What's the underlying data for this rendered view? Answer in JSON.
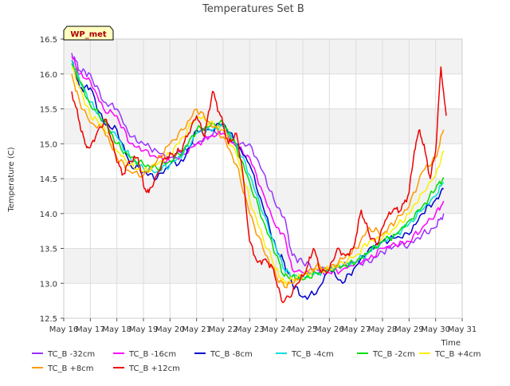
{
  "chart_data": {
    "type": "line",
    "title": "Temperatures Set B",
    "xlabel": "Time",
    "ylabel": "Temperature (C)",
    "xlim": [
      16,
      31
    ],
    "ylim": [
      12.5,
      16.5
    ],
    "x_ticks": [
      16,
      17,
      18,
      19,
      20,
      21,
      22,
      23,
      24,
      25,
      26,
      27,
      28,
      29,
      30,
      31
    ],
    "x_tick_labels": [
      "May 16",
      "May 17",
      "May 18",
      "May 19",
      "May 20",
      "May 21",
      "May 22",
      "May 23",
      "May 24",
      "May 25",
      "May 26",
      "May 27",
      "May 28",
      "May 29",
      "May 30",
      "May 31"
    ],
    "y_ticks": [
      12.5,
      13.0,
      13.5,
      14.0,
      14.5,
      15.0,
      15.5,
      16.0,
      16.5
    ],
    "y_tick_labels": [
      "12.5",
      "13.0",
      "13.5",
      "14.0",
      "14.5",
      "15.0",
      "15.5",
      "16.0",
      "16.5"
    ],
    "grid": true,
    "legend_position": "bottom",
    "annotation": "WP_met",
    "series": [
      {
        "name": "TC_B -32cm",
        "color": "#9933ff",
        "x": [
          16.3,
          16.6,
          17.0,
          17.5,
          18.0,
          18.5,
          19.0,
          19.5,
          20.0,
          20.5,
          21.0,
          21.5,
          22.0,
          22.5,
          23.0,
          23.5,
          24.0,
          24.3,
          24.6,
          25.0,
          25.5,
          26.0,
          26.5,
          27.0,
          27.5,
          28.0,
          28.5,
          29.0,
          29.5,
          30.0,
          30.3
        ],
        "y": [
          16.3,
          16.05,
          16.0,
          15.6,
          15.5,
          15.1,
          15.0,
          14.9,
          14.8,
          14.9,
          15.0,
          15.1,
          15.2,
          15.0,
          15.0,
          14.6,
          14.1,
          13.95,
          13.4,
          13.3,
          13.2,
          13.2,
          13.25,
          13.3,
          13.3,
          13.45,
          13.55,
          13.55,
          13.7,
          13.8,
          14.0
        ]
      },
      {
        "name": "TC_B -16cm",
        "color": "#ff00ff",
        "x": [
          16.3,
          16.6,
          17.0,
          17.5,
          18.0,
          18.5,
          19.0,
          19.5,
          20.0,
          20.5,
          21.0,
          21.5,
          22.0,
          22.5,
          23.0,
          23.5,
          24.0,
          24.3,
          24.6,
          25.0,
          25.5,
          26.0,
          26.5,
          27.0,
          27.5,
          28.0,
          28.5,
          29.0,
          29.5,
          30.0,
          30.3
        ],
        "y": [
          16.25,
          16.0,
          15.9,
          15.5,
          15.4,
          15.0,
          14.9,
          14.8,
          14.75,
          14.85,
          15.0,
          15.1,
          15.15,
          14.95,
          14.8,
          14.3,
          13.8,
          13.7,
          13.2,
          13.15,
          13.15,
          13.15,
          13.2,
          13.3,
          13.35,
          13.5,
          13.55,
          13.6,
          13.8,
          14.0,
          14.18
        ]
      },
      {
        "name": "TC_B -8cm",
        "color": "#0000cc",
        "x": [
          16.3,
          16.6,
          17.0,
          17.5,
          18.0,
          18.5,
          19.0,
          19.5,
          20.0,
          20.5,
          21.0,
          21.5,
          22.0,
          22.5,
          23.0,
          23.5,
          24.0,
          24.3,
          24.6,
          25.0,
          25.5,
          26.0,
          26.5,
          27.0,
          27.5,
          28.0,
          28.5,
          29.0,
          29.5,
          30.0,
          30.3
        ],
        "y": [
          16.2,
          15.8,
          15.8,
          15.3,
          15.2,
          14.7,
          14.6,
          14.5,
          14.7,
          14.75,
          15.2,
          15.2,
          15.3,
          15.0,
          14.7,
          14.1,
          13.5,
          13.3,
          13.0,
          12.8,
          12.85,
          13.2,
          13.0,
          13.25,
          13.5,
          13.6,
          13.65,
          13.7,
          14.0,
          14.2,
          14.35
        ]
      },
      {
        "name": "TC_B -4cm",
        "color": "#00dddd",
        "x": [
          16.3,
          16.6,
          17.0,
          17.5,
          18.0,
          18.5,
          19.0,
          19.5,
          20.0,
          20.5,
          21.0,
          21.5,
          22.0,
          22.5,
          23.0,
          23.5,
          24.0,
          24.3,
          24.6,
          25.0,
          25.5,
          26.0,
          26.5,
          27.0,
          27.5,
          28.0,
          28.5,
          29.0,
          29.5,
          30.0,
          30.3
        ],
        "y": [
          16.2,
          15.9,
          15.6,
          15.3,
          15.1,
          14.8,
          14.65,
          14.6,
          14.7,
          14.85,
          15.15,
          15.2,
          15.25,
          15.0,
          14.55,
          14.0,
          13.5,
          13.2,
          13.1,
          13.1,
          13.15,
          13.2,
          13.25,
          13.3,
          13.45,
          13.6,
          13.7,
          13.85,
          14.05,
          14.25,
          14.45
        ]
      },
      {
        "name": "TC_B -2cm",
        "color": "#00dd00",
        "x": [
          16.3,
          16.6,
          17.0,
          17.5,
          18.0,
          18.5,
          19.0,
          19.5,
          20.0,
          20.5,
          21.0,
          21.5,
          22.0,
          22.5,
          23.0,
          23.5,
          24.0,
          24.3,
          24.6,
          25.0,
          25.5,
          26.0,
          26.5,
          27.0,
          27.5,
          28.0,
          28.5,
          29.0,
          29.5,
          30.0,
          30.3
        ],
        "y": [
          16.15,
          15.9,
          15.55,
          15.35,
          15.0,
          14.8,
          14.7,
          14.65,
          14.75,
          14.9,
          15.2,
          15.25,
          15.3,
          14.95,
          14.45,
          13.9,
          13.4,
          13.1,
          13.1,
          13.05,
          13.15,
          13.2,
          13.25,
          13.3,
          13.45,
          13.6,
          13.7,
          13.9,
          14.1,
          14.35,
          14.52
        ]
      },
      {
        "name": "TC_B +4cm",
        "color": "#ffee00",
        "x": [
          16.3,
          16.6,
          17.0,
          17.5,
          18.0,
          18.5,
          19.0,
          19.5,
          20.0,
          20.5,
          21.0,
          21.5,
          22.0,
          22.5,
          23.0,
          23.5,
          24.0,
          24.3,
          24.6,
          25.0,
          25.5,
          26.0,
          26.5,
          27.0,
          27.5,
          28.0,
          28.5,
          29.0,
          29.5,
          30.0,
          30.3
        ],
        "y": [
          16.1,
          15.8,
          15.4,
          15.25,
          14.9,
          14.7,
          14.6,
          14.7,
          14.85,
          15.1,
          15.4,
          15.3,
          15.2,
          14.85,
          14.2,
          13.65,
          13.2,
          13.0,
          13.05,
          13.1,
          13.2,
          13.2,
          13.3,
          13.4,
          13.6,
          13.65,
          13.8,
          14.0,
          14.3,
          14.55,
          14.9
        ]
      },
      {
        "name": "TC_B +8cm",
        "color": "#ff9900",
        "x": [
          16.3,
          16.6,
          17.0,
          17.5,
          18.0,
          18.5,
          19.0,
          19.5,
          20.0,
          20.5,
          21.0,
          21.5,
          22.0,
          22.5,
          23.0,
          23.5,
          24.0,
          24.3,
          24.6,
          25.0,
          25.5,
          26.0,
          26.5,
          27.0,
          27.5,
          28.0,
          28.5,
          29.0,
          29.5,
          30.0,
          30.3
        ],
        "y": [
          16.0,
          15.6,
          15.3,
          15.2,
          14.8,
          14.6,
          14.55,
          14.75,
          15.0,
          15.2,
          15.5,
          15.3,
          15.1,
          14.7,
          14.0,
          13.5,
          13.1,
          12.95,
          13.0,
          13.1,
          13.25,
          13.2,
          13.35,
          13.5,
          13.8,
          13.7,
          13.9,
          14.1,
          14.6,
          14.8,
          15.2
        ]
      },
      {
        "name": "TC_B +12cm",
        "color": "#ee0000",
        "x": [
          16.3,
          16.6,
          16.8,
          17.0,
          17.3,
          17.6,
          17.9,
          18.2,
          18.5,
          18.8,
          19.0,
          19.2,
          19.5,
          19.8,
          20.1,
          20.4,
          20.7,
          21.0,
          21.3,
          21.6,
          21.9,
          22.2,
          22.5,
          22.7,
          23.0,
          23.3,
          23.6,
          23.9,
          24.2,
          24.5,
          24.8,
          25.1,
          25.4,
          25.7,
          26.0,
          26.3,
          26.6,
          26.9,
          27.2,
          27.5,
          27.8,
          28.1,
          28.4,
          28.7,
          29.0,
          29.2,
          29.4,
          29.6,
          29.8,
          30.0,
          30.2,
          30.4
        ],
        "y": [
          15.75,
          15.3,
          15.0,
          14.95,
          15.2,
          15.35,
          14.9,
          14.55,
          14.75,
          14.8,
          14.4,
          14.3,
          14.55,
          14.8,
          14.85,
          14.9,
          15.15,
          15.4,
          15.1,
          15.75,
          15.4,
          15.0,
          15.15,
          14.7,
          13.6,
          13.3,
          13.35,
          13.2,
          12.75,
          12.8,
          13.0,
          13.15,
          13.5,
          13.15,
          13.2,
          13.5,
          13.4,
          13.5,
          14.05,
          13.7,
          13.55,
          13.9,
          14.05,
          14.05,
          14.3,
          14.9,
          15.2,
          14.9,
          14.5,
          14.9,
          16.1,
          15.4
        ]
      }
    ]
  }
}
